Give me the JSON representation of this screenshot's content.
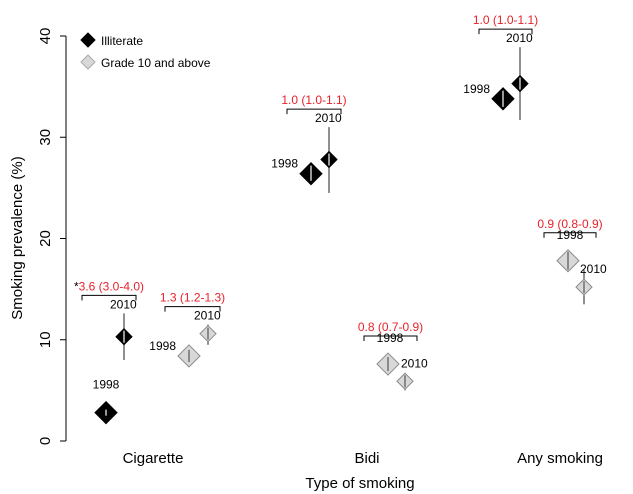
{
  "chart_data": {
    "type": "scatter",
    "xlabel": "Type of smoking",
    "ylabel": "Smoking prevalence (%)",
    "ylim": [
      0,
      40
    ],
    "yticks": [
      "0",
      "10",
      "20",
      "30",
      "40"
    ],
    "categories": [
      "Cigarette",
      "Bidi",
      "Any smoking"
    ],
    "legend": {
      "position": "top-left",
      "entries": [
        {
          "label": "Illiterate",
          "color": "#000000"
        },
        {
          "label": "Grade 10 and above",
          "color": "#d8d8d8"
        }
      ]
    },
    "series": [
      {
        "name": "Illiterate",
        "points": [
          {
            "category": "Cigarette",
            "year": "1998",
            "value": 2.8,
            "ci": [
              2.5,
              3.1
            ]
          },
          {
            "category": "Cigarette",
            "year": "2010",
            "value": 10.3,
            "ci": [
              8.0,
              12.6
            ]
          },
          {
            "category": "Bidi",
            "year": "1998",
            "value": 26.4,
            "ci": [
              25.7,
              27.2
            ]
          },
          {
            "category": "Bidi",
            "year": "2010",
            "value": 27.8,
            "ci": [
              24.5,
              31.0
            ]
          },
          {
            "category": "Any smoking",
            "year": "1998",
            "value": 33.8,
            "ci": [
              33.0,
              34.6
            ]
          },
          {
            "category": "Any smoking",
            "year": "2010",
            "value": 35.3,
            "ci": [
              31.7,
              38.9
            ]
          }
        ]
      },
      {
        "name": "Grade 10 and above",
        "points": [
          {
            "category": "Cigarette",
            "year": "1998",
            "value": 8.4,
            "ci": [
              7.8,
              9.0
            ]
          },
          {
            "category": "Cigarette",
            "year": "2010",
            "value": 10.6,
            "ci": [
              9.5,
              11.5
            ]
          },
          {
            "category": "Bidi",
            "year": "1998",
            "value": 7.6,
            "ci": [
              6.9,
              8.3
            ]
          },
          {
            "category": "Bidi",
            "year": "2010",
            "value": 5.9,
            "ci": [
              5.0,
              6.7
            ]
          },
          {
            "category": "Any smoking",
            "year": "1998",
            "value": 17.8,
            "ci": [
              16.9,
              18.7
            ]
          },
          {
            "category": "Any smoking",
            "year": "2010",
            "value": 15.2,
            "ci": [
              13.5,
              16.9
            ]
          }
        ]
      }
    ],
    "annotations": [
      {
        "category": "Cigarette",
        "series": "Illiterate",
        "text": "3.6 (3.0-4.0)",
        "prefix": "*",
        "color": "#e8222a"
      },
      {
        "category": "Cigarette",
        "series": "Grade 10 and above",
        "text": "1.3 (1.2-1.3)",
        "color": "#e8222a"
      },
      {
        "category": "Bidi",
        "series": "Illiterate",
        "text": "1.0 (1.0-1.1)",
        "color": "#e8222a"
      },
      {
        "category": "Bidi",
        "series": "Grade 10 and above",
        "text": "0.8 (0.7-0.9)",
        "color": "#e8222a"
      },
      {
        "category": "Any smoking",
        "series": "Illiterate",
        "text": "1.0 (1.0-1.1)",
        "color": "#e8222a"
      },
      {
        "category": "Any smoking",
        "series": "Grade 10 and above",
        "text": "0.9 (0.8-0.9)",
        "color": "#e8222a"
      }
    ]
  }
}
